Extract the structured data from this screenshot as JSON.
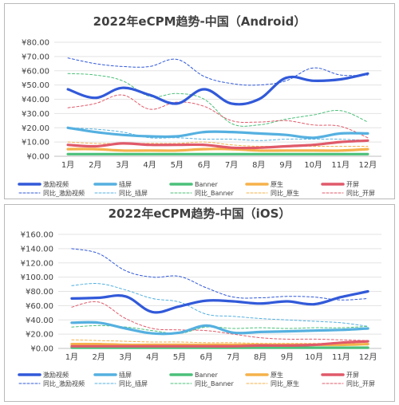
{
  "chart_data": [
    {
      "type": "line",
      "title": "2022年eCPM趋势-中国（Android）",
      "categories": [
        "1月",
        "2月",
        "3月",
        "4月",
        "5月",
        "6月",
        "7月",
        "8月",
        "9月",
        "10月",
        "11月",
        "12月"
      ],
      "ylim": [
        0,
        80
      ],
      "yticks": [
        "¥0.00",
        "¥10.00",
        "¥20.00",
        "¥30.00",
        "¥40.00",
        "¥50.00",
        "¥60.00",
        "¥70.00",
        "¥80.00"
      ],
      "grid": true,
      "legend_position": "bottom",
      "series": [
        {
          "name": "激励视频",
          "color": "#3159d9",
          "style": "solid",
          "values": [
            47,
            41,
            48,
            43,
            37,
            47,
            37,
            40,
            55,
            53,
            54,
            58
          ]
        },
        {
          "name": "插屏",
          "color": "#55b0e0",
          "style": "solid",
          "values": [
            20,
            17,
            15,
            14,
            14,
            17,
            17,
            16,
            15,
            13,
            16,
            16
          ]
        },
        {
          "name": "Banner",
          "color": "#4cc07a",
          "style": "solid",
          "values": [
            1.5,
            1.5,
            1.5,
            1.5,
            1.5,
            1.5,
            1.5,
            1.5,
            1.5,
            1.5,
            1.5,
            1.5
          ]
        },
        {
          "name": "原生",
          "color": "#f5b24a",
          "style": "solid",
          "values": [
            5,
            5,
            4,
            4,
            4,
            5,
            5,
            4,
            4,
            4,
            4,
            5
          ]
        },
        {
          "name": "开屏",
          "color": "#e05a6a",
          "style": "solid",
          "values": [
            8,
            7,
            9,
            8,
            8,
            8,
            6,
            6,
            7,
            8,
            10,
            11
          ]
        },
        {
          "name": "同比_激励视频",
          "color": "#3159d9",
          "style": "dashed",
          "values": [
            69,
            65,
            63,
            63,
            68,
            56,
            51,
            50,
            53,
            62,
            57,
            57
          ]
        },
        {
          "name": "同比_插屏",
          "color": "#55b0e0",
          "style": "dashed",
          "values": [
            20,
            19,
            17,
            13,
            13,
            12,
            12,
            11,
            12,
            12,
            12,
            11
          ]
        },
        {
          "name": "同比_Banner",
          "color": "#4cc07a",
          "style": "dashed",
          "values": [
            58,
            57,
            53,
            42,
            44,
            40,
            23,
            22,
            26,
            29,
            32,
            24
          ]
        },
        {
          "name": "同比_原生",
          "color": "#f5b24a",
          "style": "dashed",
          "values": [
            10,
            9,
            9,
            9,
            9,
            10,
            8,
            7,
            7,
            7,
            7,
            7
          ]
        },
        {
          "name": "同比_开屏",
          "color": "#e05a6a",
          "style": "dashed",
          "values": [
            34,
            37,
            43,
            33,
            38,
            35,
            25,
            24,
            25,
            22,
            21,
            13
          ]
        }
      ]
    },
    {
      "type": "line",
      "title": "2022年eCPM趋势-中国（iOS）",
      "categories": [
        "1月",
        "2月",
        "3月",
        "4月",
        "5月",
        "6月",
        "7月",
        "8月",
        "9月",
        "10月",
        "11月",
        "12月"
      ],
      "ylim": [
        0,
        160
      ],
      "yticks": [
        "¥0.00",
        "¥20.00",
        "¥40.00",
        "¥60.00",
        "¥80.00",
        "¥100.00",
        "¥120.00",
        "¥140.00",
        "¥160.00"
      ],
      "grid": true,
      "legend_position": "bottom",
      "series": [
        {
          "name": "激励视频",
          "color": "#3159d9",
          "style": "solid",
          "values": [
            70,
            71,
            73,
            51,
            59,
            67,
            66,
            63,
            66,
            62,
            72,
            80
          ]
        },
        {
          "name": "插屏",
          "color": "#55b0e0",
          "style": "solid",
          "values": [
            36,
            36,
            28,
            21,
            22,
            32,
            22,
            23,
            24,
            25,
            26,
            28
          ]
        },
        {
          "name": "Banner",
          "color": "#4cc07a",
          "style": "solid",
          "values": [
            1,
            1,
            1,
            1,
            1,
            1,
            1,
            1,
            1,
            1,
            1,
            1
          ]
        },
        {
          "name": "原生",
          "color": "#f5b24a",
          "style": "solid",
          "values": [
            6,
            6,
            5,
            5,
            5,
            5,
            5,
            5,
            5,
            5,
            5,
            6
          ]
        },
        {
          "name": "开屏",
          "color": "#e05a6a",
          "style": "solid",
          "values": [
            3,
            3,
            3,
            3,
            3,
            3,
            3,
            4,
            4,
            5,
            8,
            10
          ]
        },
        {
          "name": "同比_激励视频",
          "color": "#3159d9",
          "style": "dashed",
          "values": [
            140,
            133,
            109,
            100,
            101,
            85,
            72,
            71,
            73,
            72,
            68,
            70
          ]
        },
        {
          "name": "同比_插屏",
          "color": "#55b0e0",
          "style": "dashed",
          "values": [
            88,
            91,
            82,
            70,
            65,
            48,
            45,
            42,
            40,
            38,
            36,
            31
          ]
        },
        {
          "name": "同比_Banner",
          "color": "#4cc07a",
          "style": "dashed",
          "values": [
            30,
            32,
            30,
            25,
            21,
            30,
            28,
            29,
            28,
            29,
            29,
            31
          ]
        },
        {
          "name": "同比_原生",
          "color": "#f5b24a",
          "style": "dashed",
          "values": [
            12,
            11,
            10,
            9,
            9,
            8,
            8,
            7,
            7,
            7,
            7,
            6
          ]
        },
        {
          "name": "同比_开屏",
          "color": "#e05a6a",
          "style": "dashed",
          "values": [
            58,
            65,
            42,
            28,
            26,
            25,
            20,
            15,
            13,
            13,
            12,
            11
          ]
        }
      ]
    }
  ]
}
